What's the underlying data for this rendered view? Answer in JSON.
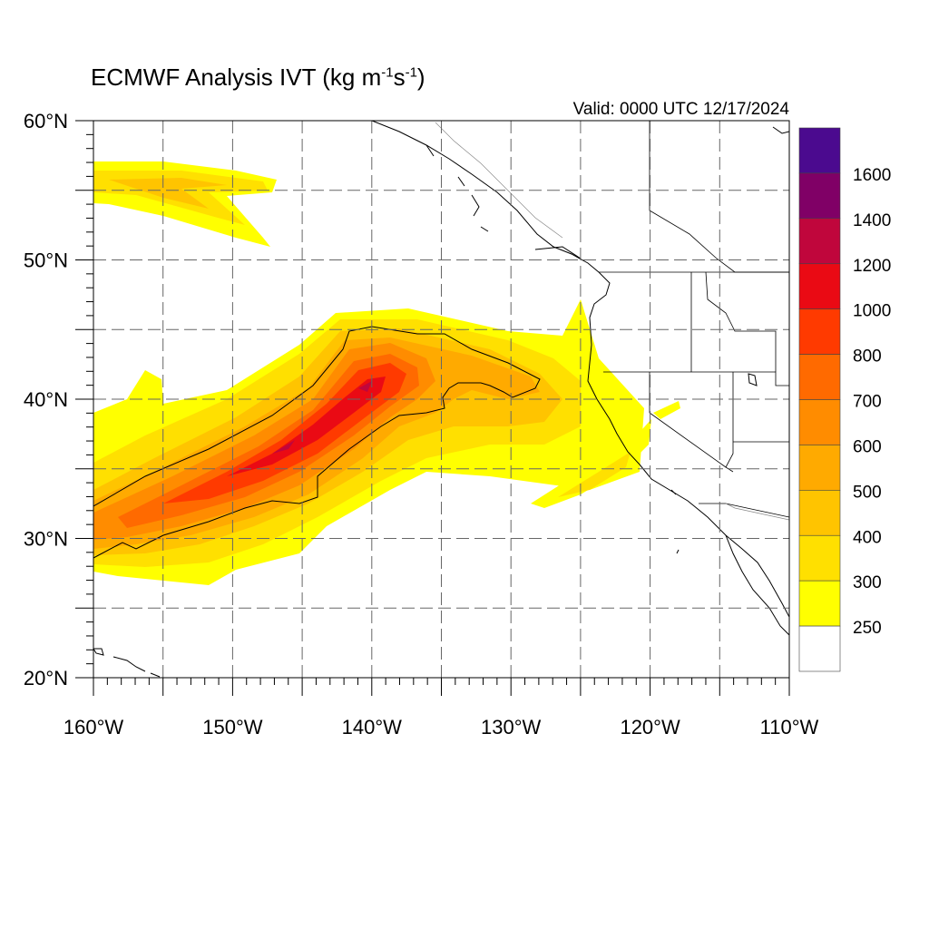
{
  "title": {
    "main": "ECMWF Analysis IVT (kg m",
    "exp1": "-1",
    "mid": "s",
    "exp2": "-1",
    "end": ")"
  },
  "valid_label": "Valid: 0000 UTC 12/17/2024",
  "map": {
    "lon_range": [
      -160,
      -110
    ],
    "lat_range": [
      20,
      60
    ],
    "grid": "dashed",
    "x_ticks": [
      {
        "lon": -160,
        "label": "160°W"
      },
      {
        "lon": -150,
        "label": "150°W"
      },
      {
        "lon": -140,
        "label": "140°W"
      },
      {
        "lon": -130,
        "label": "130°W"
      },
      {
        "lon": -120,
        "label": "120°W"
      },
      {
        "lon": -110,
        "label": "110°W"
      }
    ],
    "y_ticks": [
      {
        "lat": 60,
        "label": "60°N"
      },
      {
        "lat": 50,
        "label": "50°N"
      },
      {
        "lat": 40,
        "label": "40°N"
      },
      {
        "lat": 30,
        "label": "30°N"
      },
      {
        "lat": 20,
        "label": "20°N"
      }
    ]
  },
  "legend": {
    "levels": [
      {
        "value": "1600",
        "color": "#4b0a8f"
      },
      {
        "value": "1400",
        "color": "#800066"
      },
      {
        "value": "1200",
        "color": "#c0063c"
      },
      {
        "value": "1000",
        "color": "#ea0a14"
      },
      {
        "value": "800",
        "color": "#ff3a00"
      },
      {
        "value": "700",
        "color": "#ff6a00"
      },
      {
        "value": "600",
        "color": "#ff8c00"
      },
      {
        "value": "500",
        "color": "#ffaa00"
      },
      {
        "value": "400",
        "color": "#ffc400"
      },
      {
        "value": "300",
        "color": "#ffe000"
      },
      {
        "value": "250",
        "color": "#ffff00"
      }
    ],
    "below_color": "#ffffff"
  }
}
